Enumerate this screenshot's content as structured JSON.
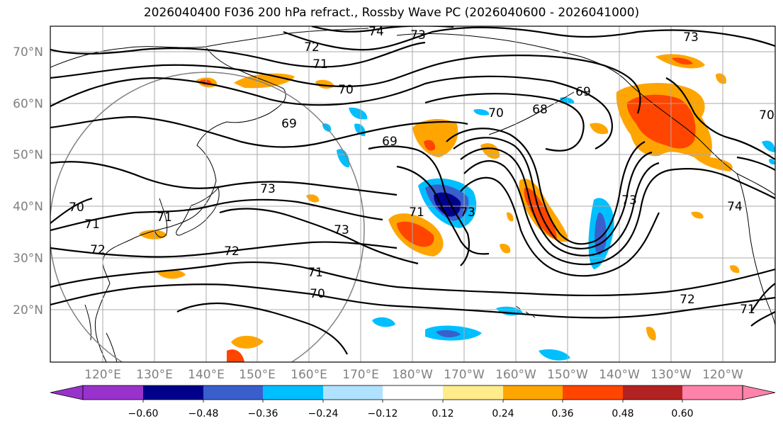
{
  "title": "2026040400 F036 200 hPa refract., Rossby Wave PC (2026040600 - 2026041000)",
  "colors": {
    "palette": [
      "#9932cc",
      "#00008b",
      "#3a5fcd",
      "#00bfff",
      "#b0e2ff",
      "#ffffff",
      "#ffec8b",
      "#ffa500",
      "#ff4500",
      "#b22222",
      "#ff82ab"
    ],
    "grid": "#aaaaaa",
    "axis_text": "#808080",
    "contour": "#000000",
    "circle": "#808080"
  },
  "lat_labels": [
    "70°N",
    "60°N",
    "50°N",
    "40°N",
    "30°N",
    "20°N"
  ],
  "lon_labels": [
    "120°E",
    "130°E",
    "140°E",
    "150°E",
    "160°E",
    "170°E",
    "180°W",
    "170°W",
    "160°W",
    "150°W",
    "140°W",
    "130°W",
    "120°W"
  ],
  "colorbar": {
    "ticks": [
      "−0.60",
      "−0.48",
      "−0.36",
      "−0.24",
      "−0.12",
      "0.12",
      "0.24",
      "0.36",
      "0.48",
      "0.60"
    ]
  },
  "contour_labels": [
    "74",
    "73",
    "73",
    "72",
    "71",
    "70",
    "69",
    "69",
    "70",
    "69",
    "68",
    "73",
    "71",
    "73",
    "72",
    "71",
    "70",
    "70",
    "71",
    "72",
    "73",
    "71",
    "72",
    "71",
    "74",
    "70",
    "73"
  ]
}
